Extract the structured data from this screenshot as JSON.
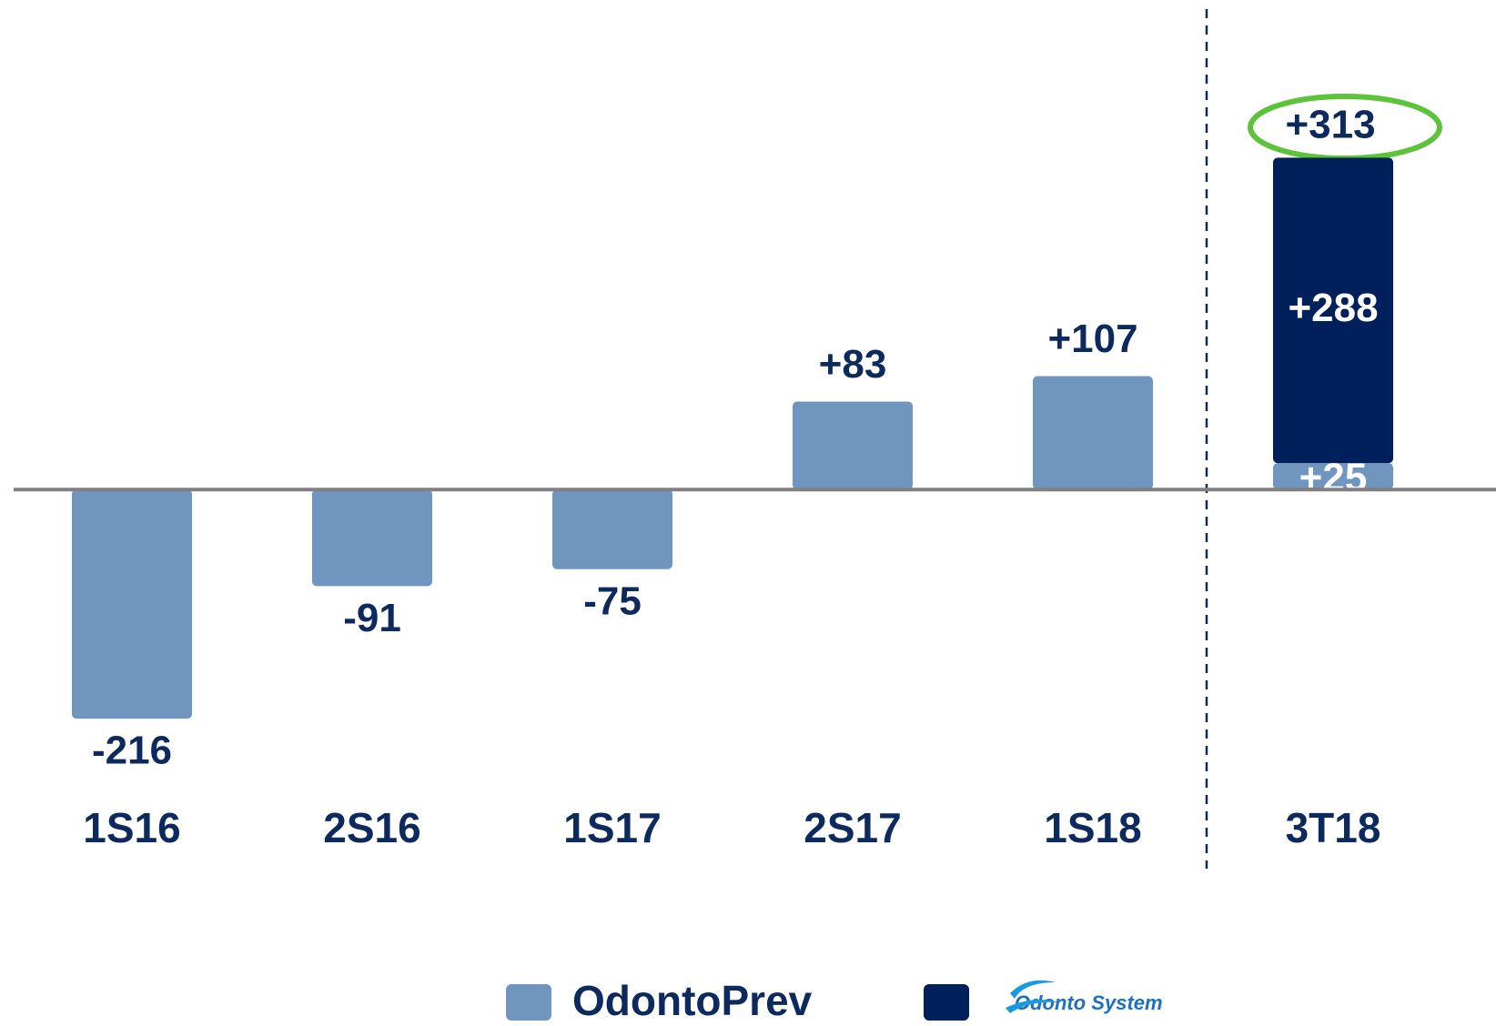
{
  "chart_data": {
    "type": "bar",
    "categories": [
      "1S16",
      "2S16",
      "1S17",
      "2S17",
      "1S18",
      "3T18"
    ],
    "series": [
      {
        "name": "OdontoPrev",
        "color": "#7096c0",
        "values": [
          -216,
          -91,
          -75,
          83,
          107,
          25
        ],
        "value_labels": [
          "-216",
          "-91",
          "-75",
          "+83",
          "+107",
          "+25"
        ]
      },
      {
        "name": "Odonto System",
        "color": "#00205b",
        "values": [
          null,
          null,
          null,
          null,
          null,
          288
        ],
        "value_labels": [
          null,
          null,
          null,
          null,
          null,
          "+288"
        ]
      }
    ],
    "annotations": [
      "+313"
    ],
    "ylim": [
      -300,
      400
    ],
    "stacked": true
  }
}
